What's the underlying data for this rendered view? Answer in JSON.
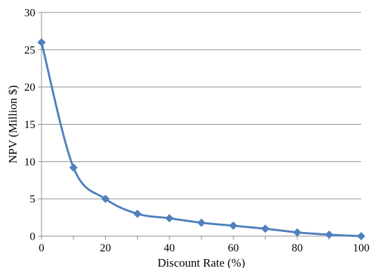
{
  "chart_data": {
    "type": "line",
    "title": "",
    "xlabel": "Discount Rate (%)",
    "ylabel": "NPV (Million $)",
    "xlim": [
      0,
      100
    ],
    "ylim": [
      0,
      30
    ],
    "x_ticks": [
      0,
      20,
      40,
      60,
      80,
      100
    ],
    "y_ticks": [
      0,
      5,
      10,
      15,
      20,
      25,
      30
    ],
    "grid": "horizontal",
    "legend": "none",
    "smooth": true,
    "marker": "diamond",
    "series": [
      {
        "color": "#4f81bd",
        "x": [
          0,
          10,
          20,
          30,
          40,
          50,
          60,
          70,
          80,
          90,
          100
        ],
        "y": [
          26.0,
          9.2,
          5.0,
          3.0,
          2.4,
          1.8,
          1.4,
          1.0,
          0.5,
          0.2,
          0.0
        ]
      }
    ]
  }
}
